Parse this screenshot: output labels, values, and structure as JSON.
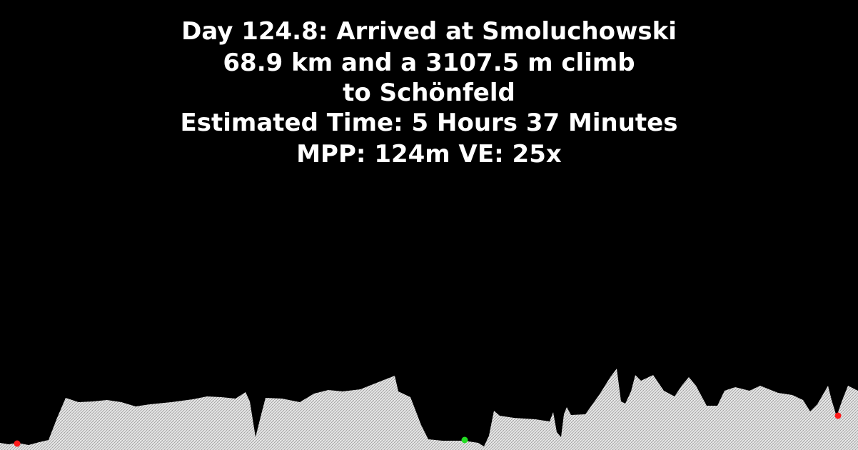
{
  "header": {
    "line1": "Day 124.8: Arrived at Smoluchowski",
    "line2": "68.9 km and a 3107.5 m climb",
    "line3": "to Schönfeld",
    "line4": "Estimated Time: 5 Hours 37 Minutes",
    "line5": "MPP: 124m VE: 25x"
  },
  "colors": {
    "background": "#000000",
    "text": "#ffffff",
    "terrain_fill": "#e6e6e6",
    "terrain_hatch": "#9a9a9a",
    "start_marker": "#ff1a1a",
    "current_marker": "#22dd22",
    "end_marker": "#ff1a1a"
  }
}
